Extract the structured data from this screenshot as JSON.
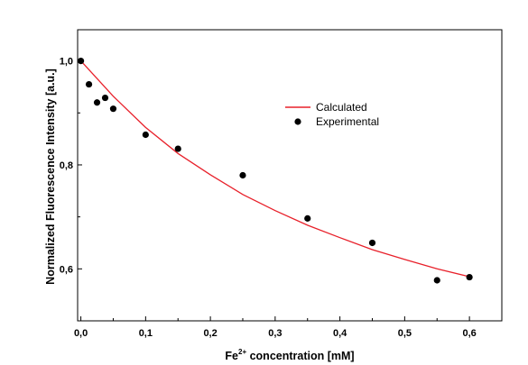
{
  "chart_data": {
    "type": "scatter",
    "xlabel": {
      "prefix": "Fe",
      "sup": "2+",
      "suffix": " concentration [mM]"
    },
    "ylabel": "Normalized Fluorescence Intensity [a.u.]",
    "xlim": [
      -0.005,
      0.65
    ],
    "ylim": [
      0.5,
      1.06
    ],
    "xticks": [
      0.0,
      0.1,
      0.2,
      0.3,
      0.4,
      0.5,
      0.6
    ],
    "xtick_labels": [
      "0,0",
      "0,1",
      "0,2",
      "0,3",
      "0,4",
      "0,5",
      "0,6"
    ],
    "yticks": [
      0.6,
      0.8,
      1.0
    ],
    "ytick_labels": [
      "0,6",
      "0,8",
      "1,0"
    ],
    "grid": false,
    "legend_position": "center-right",
    "series": [
      {
        "name": "Calculated",
        "kind": "line",
        "color": "#e8202a",
        "x": [
          0.0,
          0.05,
          0.1,
          0.15,
          0.2,
          0.25,
          0.3,
          0.35,
          0.4,
          0.45,
          0.5,
          0.55,
          0.6
        ],
        "y": [
          1.0,
          0.932,
          0.872,
          0.822,
          0.781,
          0.743,
          0.712,
          0.684,
          0.66,
          0.637,
          0.618,
          0.6,
          0.585
        ]
      },
      {
        "name": "Experimental",
        "kind": "scatter",
        "color": "#000000",
        "x": [
          0.0,
          0.0125,
          0.025,
          0.0375,
          0.05,
          0.1,
          0.15,
          0.25,
          0.35,
          0.45,
          0.55,
          0.6
        ],
        "y": [
          1.0,
          0.955,
          0.92,
          0.929,
          0.908,
          0.858,
          0.831,
          0.78,
          0.697,
          0.65,
          0.578,
          0.584
        ]
      }
    ]
  }
}
